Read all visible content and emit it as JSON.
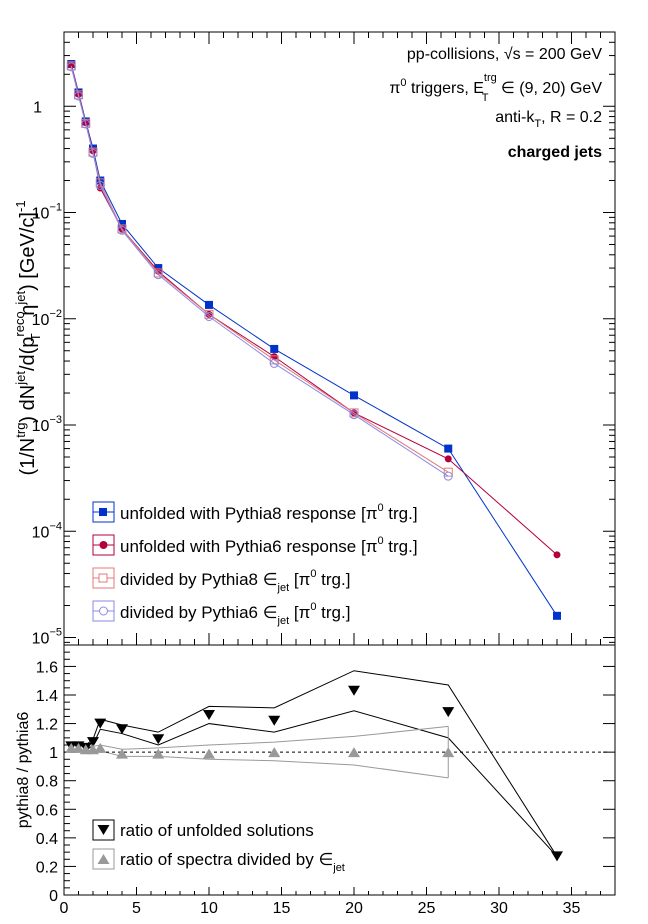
{
  "chart_data": [
    {
      "type": "scatter",
      "log_y": true,
      "xlim": [
        0,
        38
      ],
      "ylim": [
        8.5e-06,
        5
      ],
      "ylabel": {
        "parts": [
          "(1/N",
          "trg",
          ") dN",
          "jet",
          "/d(p",
          "reco",
          "T",
          " η",
          "jet",
          ") [GeV/c]",
          "-1"
        ]
      },
      "y_ticks": [
        {
          "value": 1e-05,
          "base": "10",
          "exp": "−5"
        },
        {
          "value": 0.0001,
          "base": "10",
          "exp": "−4"
        },
        {
          "value": 0.001,
          "base": "10",
          "exp": "−3"
        },
        {
          "value": 0.01,
          "base": "10",
          "exp": "−2"
        },
        {
          "value": 0.1,
          "base": "10",
          "exp": "−1"
        },
        {
          "value": 1,
          "base": "1",
          "exp": ""
        }
      ],
      "annotations": {
        "line1": "pp-collisions, √s = 200 GeV",
        "line2_pre": "π",
        "line2_sup0": "0",
        "line2_mid": " triggers, E",
        "line2_sup": "trg",
        "line2_sub": "T",
        "line2_post": " ∈ (9, 20) GeV",
        "line3_pre": "anti-k",
        "line3_sub": "T",
        "line3_post": ", R = 0.2",
        "line4": "charged jets"
      },
      "series": [
        {
          "name": "unfolded with Pythia8 response [π0 trg.]",
          "legend": {
            "pre": "unfolded with Pythia8 response [π",
            "sup": "0",
            "post": " trg.]",
            "sub": ""
          },
          "color": "#0033cc",
          "marker": "square-filled",
          "x": [
            0.5,
            1.0,
            1.5,
            2.0,
            2.5,
            4.0,
            6.5,
            10.0,
            14.5,
            20.0,
            26.5,
            34.0
          ],
          "y": [
            2.5,
            1.35,
            0.72,
            0.4,
            0.2,
            0.078,
            0.03,
            0.0135,
            0.0052,
            0.0019,
            0.0006,
            1.6e-05
          ]
        },
        {
          "name": "unfolded with Pythia6 response [π0 trg.]",
          "legend": {
            "pre": "unfolded with Pythia6 response [π",
            "sup": "0",
            "post": " trg.]",
            "sub": ""
          },
          "color": "#b3003c",
          "marker": "circle-filled",
          "x": [
            0.5,
            1.0,
            1.5,
            2.0,
            2.5,
            4.0,
            6.5,
            10.0,
            14.5,
            20.0,
            26.5,
            34.0
          ],
          "y": [
            2.45,
            1.3,
            0.7,
            0.38,
            0.17,
            0.07,
            0.028,
            0.011,
            0.0044,
            0.0013,
            0.00048,
            6e-05
          ]
        },
        {
          "name": "divided by Pythia8 εjet [π0 trg.]",
          "legend": {
            "pre": "divided by Pythia8 ∈",
            "sub": "jet",
            "mid": " [π",
            "sup": "0",
            "post": " trg.]"
          },
          "color": "#e07a7a",
          "marker": "square-open",
          "x": [
            0.5,
            1.0,
            1.5,
            2.0,
            2.5,
            4.0,
            6.5,
            10.0,
            14.5,
            20.0,
            26.5
          ],
          "y": [
            2.4,
            1.28,
            0.69,
            0.37,
            0.19,
            0.07,
            0.027,
            0.011,
            0.0041,
            0.0013,
            0.00036
          ]
        },
        {
          "name": "divided by Pythia6 εjet [π0 trg.]",
          "legend": {
            "pre": "divided by Pythia6 ∈",
            "sub": "jet",
            "mid": " [π",
            "sup": "0",
            "post": " trg.]"
          },
          "color": "#8a8ae6",
          "marker": "circle-open",
          "x": [
            0.5,
            1.0,
            1.5,
            2.0,
            2.5,
            4.0,
            6.5,
            10.0,
            14.5,
            20.0,
            26.5
          ],
          "y": [
            2.35,
            1.25,
            0.68,
            0.36,
            0.18,
            0.068,
            0.026,
            0.0105,
            0.0038,
            0.00125,
            0.00033
          ]
        }
      ]
    },
    {
      "type": "scatter",
      "xlim": [
        0,
        38
      ],
      "ylim": [
        0,
        1.75
      ],
      "ylabel": "pythia8 / pythia6",
      "x_ticks": [
        0,
        5,
        10,
        15,
        20,
        25,
        30,
        35
      ],
      "x_tick_labels": [
        "0",
        "5",
        "10",
        "15",
        "20",
        "25",
        "30",
        "35"
      ],
      "y_ticks": [
        0,
        0.2,
        0.4,
        0.6,
        0.8,
        1,
        1.2,
        1.4,
        1.6
      ],
      "y_tick_labels": [
        "0",
        "0.2",
        "0.4",
        "0.6",
        "0.8",
        "1",
        "1.2",
        "1.4",
        "1.6"
      ],
      "reference_line": 1,
      "series": [
        {
          "name": "ratio of unfolded solutions",
          "legend": {
            "pre": "ratio of unfolded solutions",
            "sub": "",
            "post": ""
          },
          "color": "#000000",
          "band_color": "#000000",
          "marker": "triangle-down",
          "x": [
            0.5,
            1.0,
            1.5,
            2.0,
            2.5,
            4.0,
            6.5,
            10.0,
            14.5,
            20.0,
            26.5,
            34.0
          ],
          "y": [
            1.04,
            1.04,
            1.03,
            1.07,
            1.2,
            1.16,
            1.09,
            1.26,
            1.22,
            1.43,
            1.28,
            0.27
          ],
          "band_upper": [
            1.06,
            1.06,
            1.05,
            1.09,
            1.23,
            1.19,
            1.14,
            1.32,
            1.31,
            1.57,
            1.47,
            0.27
          ],
          "band_lower": [
            1.02,
            1.02,
            1.01,
            1.05,
            1.16,
            1.13,
            1.05,
            1.2,
            1.14,
            1.29,
            1.1,
            0.27
          ]
        },
        {
          "name": "ratio of spectra divided by εjet",
          "legend": {
            "pre": "ratio of spectra divided by ∈",
            "sub": "jet",
            "post": ""
          },
          "color": "#999999",
          "band_color": "#999999",
          "marker": "triangle-up",
          "x": [
            0.5,
            1.0,
            1.5,
            2.0,
            2.5,
            4.0,
            6.5,
            10.0,
            14.5,
            20.0,
            26.5
          ],
          "y": [
            1.03,
            1.03,
            1.02,
            1.02,
            1.03,
            0.99,
            0.99,
            0.99,
            1.0,
            1.0,
            1.0
          ],
          "band_upper": [
            1.05,
            1.05,
            1.04,
            1.04,
            1.05,
            1.02,
            1.03,
            1.05,
            1.07,
            1.11,
            1.18
          ],
          "band_lower": [
            1.01,
            1.01,
            1.0,
            1.0,
            1.01,
            0.97,
            0.97,
            0.95,
            0.94,
            0.91,
            0.82
          ]
        }
      ]
    }
  ]
}
